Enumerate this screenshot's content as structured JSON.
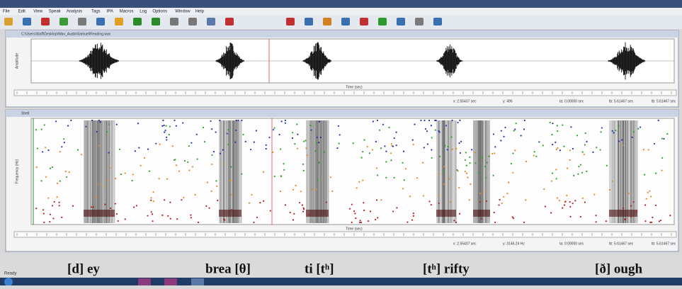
{
  "menu": [
    "File",
    "Edit",
    "View",
    "Speak",
    "Analysis",
    "Tags",
    "IPA",
    "Macros",
    "Log",
    "Options",
    "Window",
    "Help"
  ],
  "waveform": {
    "title": "C:\\Users\\Staff\\Desktop\\Wav_Audio\\Samuel\\Reading.wav",
    "y_label": "Amplitude",
    "x_label": "Time (sec)",
    "status": [
      "x: 2.55437 sec",
      "y: 496",
      "ta: 0.00000 sec",
      "tb: 5.61467 sec",
      "tb: 5.61467 sec"
    ]
  },
  "spectrogram": {
    "title": "Shell",
    "y_label": "Frequency (Hz)",
    "x_label": "Time (sec)",
    "status": [
      "x: 2.55437 sec",
      "y: 3146.24 Hz",
      "ta: 0.00000 sec",
      "tb: 5.61467 sec",
      "tb: 5.61467 sec"
    ]
  },
  "annotations": [
    "[d] ey",
    "brea [θ]",
    "ti [tʰ]",
    "[tʰ] rifty",
    "[ð] ough"
  ],
  "status_bar": "Ready"
}
